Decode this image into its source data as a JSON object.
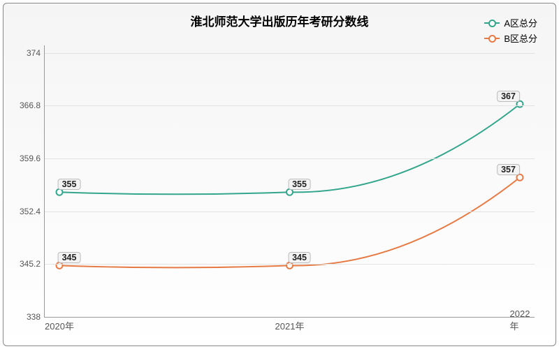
{
  "chart": {
    "type": "line",
    "title": "淮北师范大学出版历年考研分数线",
    "title_fontsize": 17,
    "background_gradient_top": "#f5f5f5",
    "background_gradient_bottom": "#ffffff",
    "border_color": "#888888",
    "grid_color": "#e2e2e2",
    "axis_color": "#999999",
    "text_color": "#555555",
    "x_categories": [
      "2020年",
      "2021年",
      "2022年"
    ],
    "ylim": [
      338,
      375
    ],
    "yticks": [
      338,
      345.2,
      352.4,
      359.6,
      366.8,
      374
    ],
    "series": [
      {
        "name": "A区总分",
        "color": "#33a58b",
        "values": [
          355,
          355,
          367
        ],
        "line_width": 2,
        "marker": "circle",
        "marker_fill": "#ffffff",
        "curved": true
      },
      {
        "name": "B区总分",
        "color": "#e67a45",
        "values": [
          345,
          345,
          357
        ],
        "line_width": 2,
        "marker": "circle",
        "marker_fill": "#ffffff",
        "curved": true
      }
    ],
    "legend_position": "top-right",
    "label_fontsize": 12,
    "label_bg": "#f3f3f3",
    "label_border": "#bbbbbb"
  }
}
